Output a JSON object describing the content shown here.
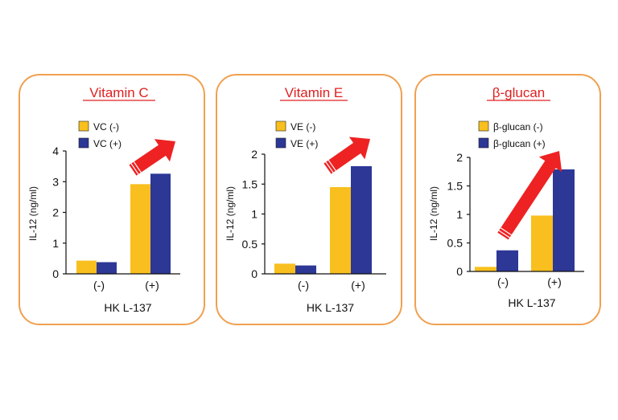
{
  "panels": [
    {
      "title": "Vitamin C",
      "chart_data": {
        "type": "bar",
        "title": "Vitamin C",
        "categories": [
          "(-)",
          "(+)"
        ],
        "series": [
          {
            "name": "VC (-)",
            "values": [
              0.43,
              2.92
            ]
          },
          {
            "name": "VC (+)",
            "values": [
              0.38,
              3.26
            ]
          }
        ],
        "xlabel": "HK L-137",
        "ylabel": "IL-12 (ng/ml)",
        "ylim": [
          0,
          4
        ],
        "yticks": [
          "0",
          "1",
          "2",
          "3",
          "4"
        ],
        "grid": false,
        "legend": "top-left"
      }
    },
    {
      "title": "Vitamin E",
      "chart_data": {
        "type": "bar",
        "title": "Vitamin E",
        "categories": [
          "(-)",
          "(+)"
        ],
        "series": [
          {
            "name": "VE (-)",
            "values": [
              0.17,
              1.45
            ]
          },
          {
            "name": "VE (+)",
            "values": [
              0.14,
              1.8
            ]
          }
        ],
        "xlabel": "HK L-137",
        "ylabel": "IL-12 (ng/ml)",
        "ylim": [
          0,
          2
        ],
        "yticks": [
          "0",
          "0.5",
          "1",
          "1.5",
          "2"
        ],
        "grid": false,
        "legend": "top-left"
      }
    },
    {
      "title": "β-glucan",
      "chart_data": {
        "type": "bar",
        "title": "β-glucan",
        "categories": [
          "(-)",
          "(+)"
        ],
        "series": [
          {
            "name": "β-glucan (-)",
            "values": [
              0.08,
              0.98
            ]
          },
          {
            "name": "β-glucan (+)",
            "values": [
              0.37,
              1.79
            ]
          }
        ],
        "xlabel": "HK L-137",
        "ylabel": "IL-12 (ng/ml)",
        "ylim": [
          0,
          2
        ],
        "yticks": [
          "0",
          "0.5",
          "1",
          "1.5",
          "2"
        ],
        "grid": false,
        "legend": "top-left"
      }
    }
  ],
  "colors": {
    "series_minus": "#f8bf1e",
    "series_plus": "#2c3796",
    "title": "#e02020",
    "arrow": "#ee2222",
    "border": "#f0a050"
  }
}
